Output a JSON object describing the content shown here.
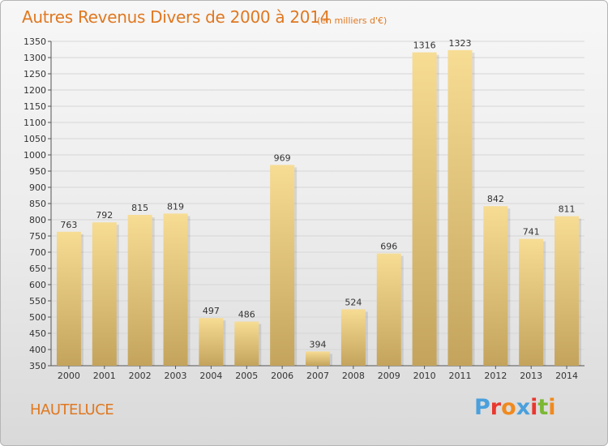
{
  "header": {
    "title": "Autres Revenus Divers de 2000 à 2014",
    "subtitle": "(en milliers d'€)"
  },
  "footer": {
    "town": "HAUTELUCE",
    "logo_letters": [
      "P",
      "r",
      "o",
      "x",
      "i",
      "t",
      "i"
    ]
  },
  "colors": {
    "title": "#e07820",
    "bar_top": "#f7dc94",
    "bar_bottom": "#c4a45c",
    "grid": "#d6d6d6",
    "logo": [
      "#4aa0dc",
      "#e8382e",
      "#f08a1e",
      "#4aa0dc",
      "#e8382e",
      "#7cb834",
      "#f08a1e"
    ]
  },
  "chart_data": {
    "type": "bar",
    "categories": [
      "2000",
      "2001",
      "2002",
      "2003",
      "2004",
      "2005",
      "2006",
      "2007",
      "2008",
      "2009",
      "2010",
      "2011",
      "2012",
      "2013",
      "2014"
    ],
    "values": [
      763,
      792,
      815,
      819,
      497,
      486,
      969,
      394,
      524,
      696,
      1316,
      1323,
      842,
      741,
      811
    ],
    "ylim": [
      350,
      1350
    ],
    "yticks": [
      350,
      400,
      450,
      500,
      550,
      600,
      650,
      700,
      750,
      800,
      850,
      900,
      950,
      1000,
      1050,
      1100,
      1150,
      1200,
      1250,
      1300,
      1350
    ],
    "grid": true,
    "xlabel": "",
    "ylabel": ""
  }
}
